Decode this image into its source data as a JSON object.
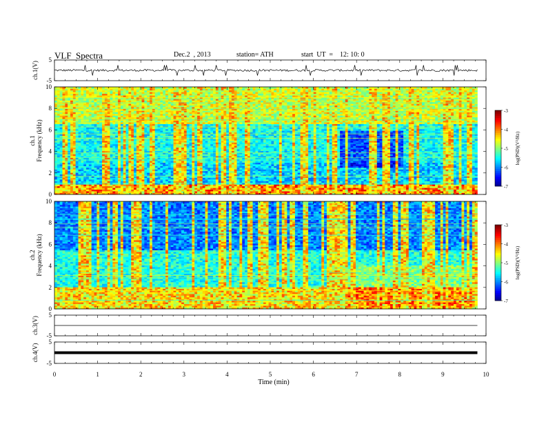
{
  "header": {
    "title": "VLF  Spectra",
    "date": "Dec.2  , 2013",
    "station": "station= ATH",
    "start": "start  UT  =    12: 10: 0"
  },
  "chart_data": [
    {
      "type": "line",
      "panel": "ch1-waveform",
      "ylabel": "ch.1(V)",
      "ylim": [
        -5,
        5
      ],
      "yticks": [
        "5",
        "-5"
      ],
      "xlim": [
        0,
        10
      ],
      "data_extent_min": 9.8,
      "description_values": {
        "baseline": 0,
        "typical_amplitude": 1,
        "spike_amplitude": 2.5
      }
    },
    {
      "type": "heatmap",
      "panel": "ch1-spectrogram",
      "ylabel": "ch.1\nFrequency  (kHz)",
      "ylim": [
        0,
        10
      ],
      "yticks": [
        "0",
        "2",
        "4",
        "6",
        "8",
        "10"
      ],
      "xlim": [
        0,
        10
      ],
      "colorbar": {
        "label": "log(PSD)(V²/Hz)",
        "range": [
          -7,
          -3
        ],
        "ticks": [
          "-3",
          "-4",
          "-5",
          "-6",
          "-7"
        ]
      }
    },
    {
      "type": "heatmap",
      "panel": "ch2-spectrogram",
      "ylabel": "ch.2\nFrequency  (kHz)",
      "ylim": [
        0,
        10
      ],
      "yticks": [
        "0",
        "2",
        "4",
        "6",
        "8",
        "10"
      ],
      "xlim": [
        0,
        10
      ],
      "colorbar": {
        "label": "log(PSD)(V²/Hz)",
        "range": [
          -7,
          -3
        ],
        "ticks": [
          "-3",
          "-4",
          "-5",
          "-6",
          "-7"
        ]
      }
    },
    {
      "type": "line",
      "panel": "ch3-waveform",
      "ylabel": "ch.3(V)",
      "ylim": [
        -5,
        5
      ],
      "yticks": [
        "5",
        "-5"
      ],
      "xlim": [
        0,
        10
      ],
      "baseline_value": 0
    },
    {
      "type": "line",
      "panel": "ch4-waveform",
      "ylabel": "ch.4(V)",
      "ylim": [
        -5,
        5
      ],
      "yticks": [
        "5",
        "-5"
      ],
      "xlim": [
        0,
        10
      ],
      "baseline_value": 0
    }
  ],
  "xaxis": {
    "label": "Time  (min)",
    "ticks": [
      "0",
      "1",
      "2",
      "3",
      "4",
      "5",
      "6",
      "7",
      "8",
      "9",
      "10"
    ]
  }
}
